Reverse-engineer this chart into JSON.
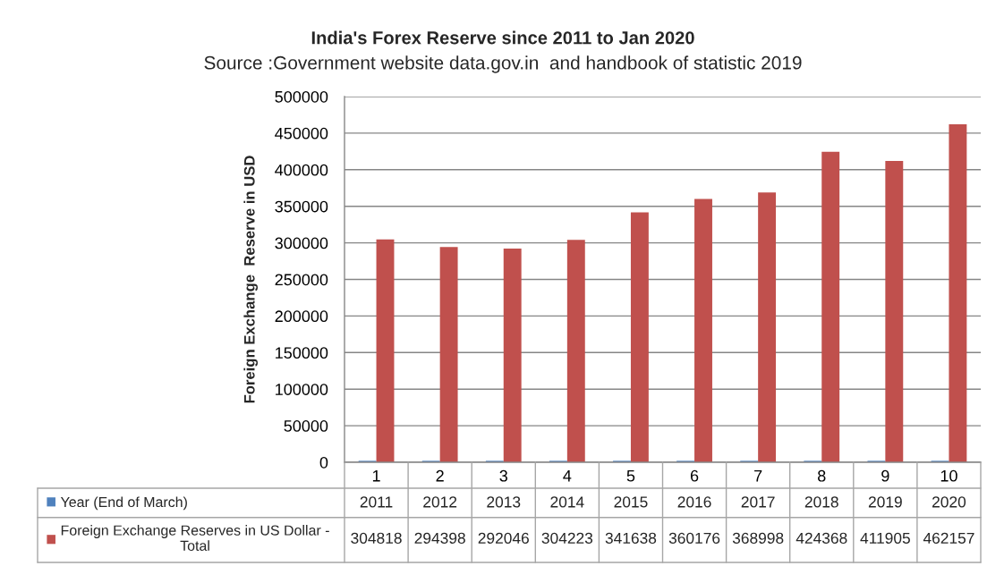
{
  "chart_data": {
    "type": "bar",
    "title": "India's Forex Reserve since 2011 to Jan 2020",
    "subtitle": "Source :Government website data.gov.in  and handbook of statistic 2019",
    "ylabel": "Foreign Exchange  Reserve in USD",
    "categories": [
      "1",
      "2",
      "3",
      "4",
      "5",
      "6",
      "7",
      "8",
      "9",
      "10"
    ],
    "series": [
      {
        "name": "Year (End of March)",
        "color": "#4f81bd",
        "values": [
          2011,
          2012,
          2013,
          2014,
          2015,
          2016,
          2017,
          2018,
          2019,
          2020
        ]
      },
      {
        "name": "Foreign Exchange Reserves in US Dollar - Total",
        "color": "#c0504d",
        "values": [
          304818,
          294398,
          292046,
          304223,
          341638,
          360176,
          368998,
          424368,
          411905,
          462157
        ]
      }
    ],
    "ylim": [
      0,
      500000
    ],
    "yticks": [
      0,
      50000,
      100000,
      150000,
      200000,
      250000,
      300000,
      350000,
      400000,
      450000,
      500000
    ],
    "grid": "y",
    "legend": "bottom",
    "data_labels": true
  }
}
